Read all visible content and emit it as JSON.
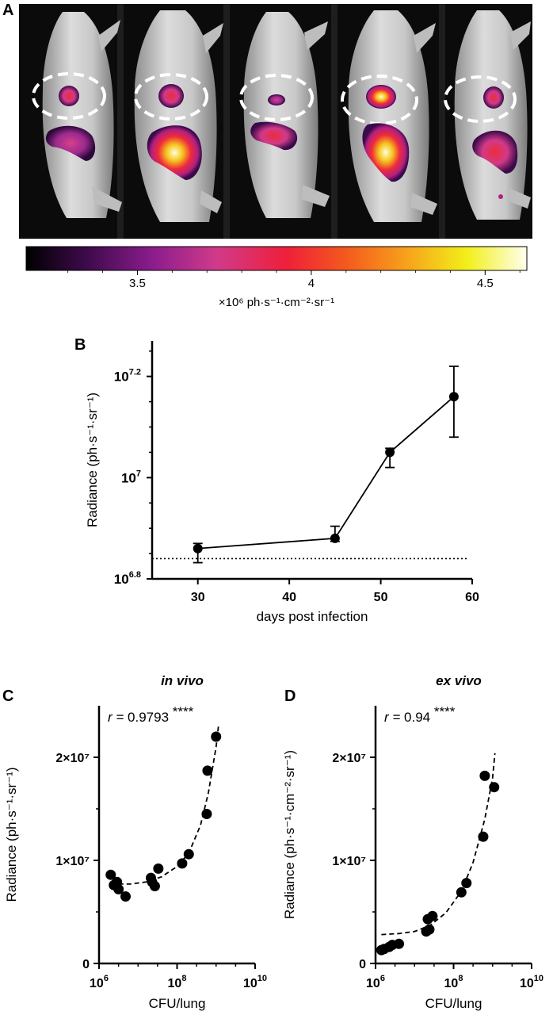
{
  "panels": {
    "a": {
      "letter": "A",
      "colorbar": {
        "ticks": [
          "3.5",
          "4",
          "4.5"
        ],
        "label": "×10⁶ ph·s⁻¹·cm⁻²·sr⁻¹",
        "colors": [
          "#000000",
          "#3d0a4a",
          "#8a1c8c",
          "#d03a8a",
          "#ef1f3a",
          "#f45a1e",
          "#f7a21b",
          "#f2ef1a",
          "#ffffee"
        ]
      },
      "mice": [
        {
          "lung": 0.45,
          "abdomen": 0.55
        },
        {
          "lung": 0.55,
          "abdomen": 0.95
        },
        {
          "lung": 0.3,
          "abdomen": 0.6
        },
        {
          "lung": 0.95,
          "abdomen": 0.85
        },
        {
          "lung": 0.55,
          "abdomen": 0.7
        }
      ]
    },
    "b": {
      "letter": "B"
    },
    "c": {
      "letter": "C"
    },
    "d": {
      "letter": "D"
    }
  },
  "chart_data": [
    {
      "type": "line",
      "id": "b",
      "xlabel": "days post infection",
      "ylabel": "Radiance (ph·s⁻¹·sr⁻¹)",
      "xlim": [
        25,
        60
      ],
      "xticks": [
        "30",
        "40",
        "50",
        "60"
      ],
      "ylim": [
        6.8,
        7.27
      ],
      "yscale": "log10",
      "yticks": [
        {
          "value": 6.8,
          "base": "10",
          "exp": "6.8"
        },
        {
          "value": 7.0,
          "base": "10",
          "exp": "7"
        },
        {
          "value": 7.2,
          "base": "10",
          "exp": "7.2"
        }
      ],
      "x": [
        30,
        45,
        51,
        58
      ],
      "y": [
        6.86,
        6.88,
        7.05,
        7.16
      ],
      "yerr_low": [
        6.832,
        6.874,
        7.02,
        7.08
      ],
      "yerr_high": [
        6.87,
        6.904,
        7.058,
        7.22
      ],
      "baseline": 6.84,
      "grid": false
    },
    {
      "type": "scatter",
      "id": "c",
      "title": "in vivo",
      "annotation": {
        "r_label": "r = ",
        "value": "0.9793",
        "stars": "****"
      },
      "xlabel": "CFU/lung",
      "ylabel": "Radiance (ph·s⁻¹·sr⁻¹)",
      "xscale": "log10",
      "xlim": [
        6,
        10
      ],
      "xticks": [
        {
          "value": 6,
          "base": "10",
          "exp": "6"
        },
        {
          "value": 8,
          "base": "10",
          "exp": "8"
        },
        {
          "value": 10,
          "base": "10",
          "exp": "10"
        }
      ],
      "ylim": [
        0,
        25000000
      ],
      "yticks": [
        {
          "value": 0,
          "label": "0"
        },
        {
          "value": 10000000,
          "label": "1×10⁷"
        },
        {
          "value": 20000000,
          "label": "2×10⁷"
        }
      ],
      "points": [
        [
          6.3,
          8600000
        ],
        [
          6.38,
          7600000
        ],
        [
          6.46,
          7900000
        ],
        [
          6.5,
          7200000
        ],
        [
          6.68,
          6500000
        ],
        [
          7.33,
          8300000
        ],
        [
          7.36,
          7900000
        ],
        [
          7.43,
          7500000
        ],
        [
          7.52,
          9200000
        ],
        [
          8.13,
          9700000
        ],
        [
          8.3,
          10600000
        ],
        [
          8.76,
          14500000
        ],
        [
          8.78,
          18700000
        ],
        [
          9.0,
          22000000
        ]
      ],
      "fit": [
        [
          6.3,
          7700000
        ],
        [
          6.8,
          7700000
        ],
        [
          7.2,
          7900000
        ],
        [
          7.6,
          8400000
        ],
        [
          8.0,
          9400000
        ],
        [
          8.3,
          10700000
        ],
        [
          8.6,
          13400000
        ],
        [
          8.8,
          16500000
        ],
        [
          9.0,
          21000000
        ],
        [
          9.06,
          23000000
        ]
      ],
      "grid": false
    },
    {
      "type": "scatter",
      "id": "d",
      "title": "ex vivo",
      "annotation": {
        "r_label": "r = ",
        "value": "0.94",
        "stars": "****"
      },
      "xlabel": "CFU/lung",
      "ylabel": "Radiance (ph·s⁻¹·cm⁻²·sr⁻¹)",
      "xscale": "log10",
      "xlim": [
        6,
        10
      ],
      "xticks": [
        {
          "value": 6,
          "base": "10",
          "exp": "6"
        },
        {
          "value": 8,
          "base": "10",
          "exp": "8"
        },
        {
          "value": 10,
          "base": "10",
          "exp": "10"
        }
      ],
      "ylim": [
        0,
        25000000
      ],
      "yticks": [
        {
          "value": 0,
          "label": "0"
        },
        {
          "value": 10000000,
          "label": "1×10⁷"
        },
        {
          "value": 20000000,
          "label": "2×10⁷"
        }
      ],
      "points": [
        [
          6.15,
          1300000
        ],
        [
          6.22,
          1400000
        ],
        [
          6.35,
          1600000
        ],
        [
          6.43,
          1800000
        ],
        [
          6.6,
          1900000
        ],
        [
          7.3,
          3100000
        ],
        [
          7.34,
          4300000
        ],
        [
          7.38,
          3300000
        ],
        [
          7.46,
          4600000
        ],
        [
          8.2,
          6900000
        ],
        [
          8.33,
          7800000
        ],
        [
          8.76,
          12300000
        ],
        [
          8.8,
          18200000
        ],
        [
          9.04,
          17100000
        ]
      ],
      "fit": [
        [
          6.15,
          2800000
        ],
        [
          6.6,
          2900000
        ],
        [
          7.0,
          3100000
        ],
        [
          7.4,
          3700000
        ],
        [
          7.8,
          4900000
        ],
        [
          8.2,
          7000000
        ],
        [
          8.5,
          9800000
        ],
        [
          8.8,
          14000000
        ],
        [
          9.0,
          18000000
        ],
        [
          9.06,
          20400000
        ]
      ],
      "grid": false
    }
  ]
}
